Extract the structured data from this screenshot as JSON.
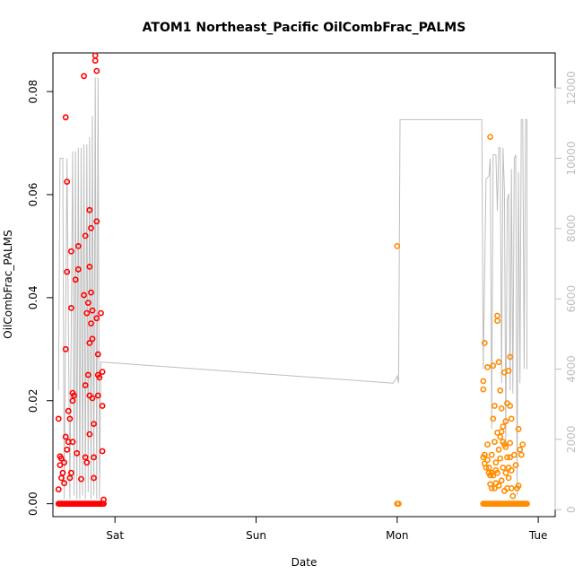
{
  "chart_data": {
    "type": "scatter",
    "title": "ATOM1 Northeast_Pacific OilCombFrac_PALMS",
    "xlabel": "Date",
    "ylabel": "OilCombFrac_PALMS",
    "xlim": [
      -0.44,
      3.12
    ],
    "ylim": [
      -0.0025,
      0.0875
    ],
    "y2lim": [
      -200,
      13000
    ],
    "x_ticks": [
      {
        "value": 0,
        "label": "Sat"
      },
      {
        "value": 1,
        "label": "Sun"
      },
      {
        "value": 2,
        "label": "Mon"
      },
      {
        "value": 3,
        "label": "Tue"
      }
    ],
    "y_ticks": [
      {
        "value": 0.0,
        "label": "0.00"
      },
      {
        "value": 0.02,
        "label": "0.02"
      },
      {
        "value": 0.04,
        "label": "0.04"
      },
      {
        "value": 0.06,
        "label": "0.06"
      },
      {
        "value": 0.08,
        "label": "0.08"
      }
    ],
    "y2_ticks": [
      {
        "value": 0,
        "label": "0"
      },
      {
        "value": 2000,
        "label": "2000"
      },
      {
        "value": 4000,
        "label": "4000"
      },
      {
        "value": 6000,
        "label": "6000"
      },
      {
        "value": 8000,
        "label": "8000"
      },
      {
        "value": 10000,
        "label": "10000"
      },
      {
        "value": 12000,
        "label": "12000"
      }
    ],
    "grid": false,
    "colors": {
      "series1": "#ff0000",
      "series2": "#ff8c00",
      "altitude": "#bebebe"
    },
    "series": [
      {
        "points": [
          [
            -0.4,
            0.0165
          ],
          [
            -0.4,
            0.0028
          ],
          [
            -0.39,
            0.0092
          ],
          [
            -0.39,
            0.0075
          ],
          [
            -0.38,
            0.0088
          ],
          [
            -0.38,
            0.005
          ],
          [
            -0.37,
            0.006
          ],
          [
            -0.36,
            0.004
          ],
          [
            -0.36,
            0.008
          ],
          [
            -0.35,
            0.013
          ],
          [
            -0.35,
            0.03
          ],
          [
            -0.35,
            0.075
          ],
          [
            -0.34,
            0.0625
          ],
          [
            -0.34,
            0.045
          ],
          [
            -0.34,
            0.0105
          ],
          [
            -0.33,
            0.012
          ],
          [
            -0.33,
            0.018
          ],
          [
            -0.32,
            0.0165
          ],
          [
            -0.32,
            0.005
          ],
          [
            -0.31,
            0.006
          ],
          [
            -0.31,
            0.038
          ],
          [
            -0.31,
            0.049
          ],
          [
            -0.3,
            0.0215
          ],
          [
            -0.3,
            0.02
          ],
          [
            -0.3,
            0.012
          ],
          [
            -0.29,
            0.021
          ],
          [
            -0.28,
            0.0435
          ],
          [
            -0.27,
            0.0098
          ],
          [
            -0.26,
            0.05
          ],
          [
            -0.26,
            0.0455
          ],
          [
            -0.24,
            0.0048
          ],
          [
            -0.22,
            0.0405
          ],
          [
            -0.22,
            0.083
          ],
          [
            -0.21,
            0.023
          ],
          [
            -0.21,
            0.009
          ],
          [
            -0.21,
            0.052
          ],
          [
            -0.2,
            0.037
          ],
          [
            -0.2,
            0.008
          ],
          [
            -0.19,
            0.025
          ],
          [
            -0.19,
            0.039
          ],
          [
            -0.18,
            0.057
          ],
          [
            -0.18,
            0.046
          ],
          [
            -0.18,
            0.021
          ],
          [
            -0.18,
            0.0312
          ],
          [
            -0.18,
            0.0135
          ],
          [
            -0.17,
            0.0535
          ],
          [
            -0.17,
            0.041
          ],
          [
            -0.17,
            0.035
          ],
          [
            -0.16,
            0.0375
          ],
          [
            -0.16,
            0.0205
          ],
          [
            -0.16,
            0.032
          ],
          [
            -0.15,
            0.0155
          ],
          [
            -0.15,
            0.005
          ],
          [
            -0.15,
            0.009
          ],
          [
            -0.14,
            0.086
          ],
          [
            -0.14,
            0.087
          ],
          [
            -0.13,
            0.084
          ],
          [
            -0.13,
            0.0548
          ],
          [
            -0.13,
            0.036
          ],
          [
            -0.12,
            0.029
          ],
          [
            -0.12,
            0.025
          ],
          [
            -0.12,
            0.021
          ],
          [
            -0.11,
            0.0245
          ],
          [
            -0.1,
            0.037
          ],
          [
            -0.09,
            0.019
          ],
          [
            -0.09,
            0.0102
          ],
          [
            -0.09,
            0.0256
          ],
          [
            -0.08,
            0.0008
          ],
          [
            -0.4,
            0
          ],
          [
            -0.39,
            0
          ],
          [
            -0.38,
            0
          ],
          [
            -0.37,
            0
          ],
          [
            -0.36,
            0
          ],
          [
            -0.35,
            0
          ],
          [
            -0.34,
            0
          ],
          [
            -0.33,
            0
          ],
          [
            -0.32,
            0
          ],
          [
            -0.31,
            0
          ],
          [
            -0.3,
            0
          ],
          [
            -0.29,
            0
          ],
          [
            -0.28,
            0
          ],
          [
            -0.27,
            0
          ],
          [
            -0.26,
            0
          ],
          [
            -0.25,
            0
          ],
          [
            -0.24,
            0
          ],
          [
            -0.23,
            0
          ],
          [
            -0.22,
            0
          ],
          [
            -0.21,
            0
          ],
          [
            -0.2,
            0
          ],
          [
            -0.19,
            0
          ],
          [
            -0.18,
            0
          ],
          [
            -0.17,
            0
          ],
          [
            -0.16,
            0
          ],
          [
            -0.15,
            0
          ],
          [
            -0.14,
            0
          ],
          [
            -0.13,
            0
          ],
          [
            -0.12,
            0
          ],
          [
            -0.11,
            0
          ],
          [
            -0.1,
            0
          ],
          [
            -0.09,
            0
          ],
          [
            -0.08,
            0
          ]
        ]
      },
      {
        "points": [
          [
            2.0,
            0.05
          ],
          [
            2.0,
            0
          ],
          [
            2.01,
            0
          ],
          [
            2.61,
            0.0238
          ],
          [
            2.61,
            0.0222
          ],
          [
            2.61,
            0.009
          ],
          [
            2.62,
            0.0312
          ],
          [
            2.62,
            0.0095
          ],
          [
            2.62,
            0.0078
          ],
          [
            2.63,
            0.007
          ],
          [
            2.64,
            0.0115
          ],
          [
            2.64,
            0.0265
          ],
          [
            2.64,
            0.0085
          ],
          [
            2.65,
            0.006
          ],
          [
            2.65,
            0.007
          ],
          [
            2.66,
            0.0055
          ],
          [
            2.66,
            0.0712
          ],
          [
            2.66,
            0.0038
          ],
          [
            2.67,
            0.006
          ],
          [
            2.67,
            0.0095
          ],
          [
            2.67,
            0.003
          ],
          [
            2.68,
            0.0268
          ],
          [
            2.68,
            0.0165
          ],
          [
            2.68,
            0.0055
          ],
          [
            2.69,
            0.019
          ],
          [
            2.69,
            0.012
          ],
          [
            2.69,
            0.003
          ],
          [
            2.7,
            0.0065
          ],
          [
            2.7,
            0.008
          ],
          [
            2.7,
            0.004
          ],
          [
            2.71,
            0.0138
          ],
          [
            2.71,
            0.0355
          ],
          [
            2.71,
            0.0365
          ],
          [
            2.71,
            0.006
          ],
          [
            2.72,
            0.0275
          ],
          [
            2.72,
            0.0105
          ],
          [
            2.72,
            0.0035
          ],
          [
            2.73,
            0.013
          ],
          [
            2.73,
            0.022
          ],
          [
            2.73,
            0.0088
          ],
          [
            2.74,
            0.014
          ],
          [
            2.74,
            0.0185
          ],
          [
            2.74,
            0.0045
          ],
          [
            2.75,
            0.007
          ],
          [
            2.75,
            0.012
          ],
          [
            2.75,
            0.015
          ],
          [
            2.76,
            0.0255
          ],
          [
            2.76,
            0.0115
          ],
          [
            2.76,
            0.0025
          ],
          [
            2.77,
            0.016
          ],
          [
            2.77,
            0.011
          ],
          [
            2.77,
            0.006
          ],
          [
            2.78,
            0.0195
          ],
          [
            2.78,
            0.009
          ],
          [
            2.78,
            0.003
          ],
          [
            2.79,
            0.0258
          ],
          [
            2.79,
            0.007
          ],
          [
            2.79,
            0.005
          ],
          [
            2.8,
            0.0285
          ],
          [
            2.8,
            0.019
          ],
          [
            2.8,
            0.0118
          ],
          [
            2.8,
            0.009
          ],
          [
            2.81,
            0.0165
          ],
          [
            2.81,
            0.0065
          ],
          [
            2.81,
            0.003
          ],
          [
            2.82,
            0.0015
          ],
          [
            2.83,
            0.0095
          ],
          [
            2.84,
            0.0075
          ],
          [
            2.85,
            0.003
          ],
          [
            2.86,
            0.0145
          ],
          [
            2.86,
            0.0035
          ],
          [
            2.87,
            0.0105
          ],
          [
            2.88,
            0.0095
          ],
          [
            2.89,
            0.0115
          ],
          [
            2.61,
            0
          ],
          [
            2.62,
            0
          ],
          [
            2.63,
            0
          ],
          [
            2.64,
            0
          ],
          [
            2.65,
            0
          ],
          [
            2.66,
            0
          ],
          [
            2.67,
            0
          ],
          [
            2.68,
            0
          ],
          [
            2.69,
            0
          ],
          [
            2.7,
            0
          ],
          [
            2.71,
            0
          ],
          [
            2.72,
            0
          ],
          [
            2.73,
            0
          ],
          [
            2.74,
            0
          ],
          [
            2.75,
            0
          ],
          [
            2.76,
            0
          ],
          [
            2.77,
            0
          ],
          [
            2.78,
            0
          ],
          [
            2.79,
            0
          ],
          [
            2.8,
            0
          ],
          [
            2.81,
            0
          ],
          [
            2.82,
            0
          ],
          [
            2.83,
            0
          ],
          [
            2.84,
            0
          ],
          [
            2.85,
            0
          ],
          [
            2.86,
            0
          ],
          [
            2.87,
            0
          ],
          [
            2.88,
            0
          ],
          [
            2.89,
            0
          ],
          [
            2.9,
            0
          ],
          [
            2.91,
            0
          ],
          [
            2.92,
            0
          ]
        ]
      }
    ],
    "altitude_line": [
      [
        -0.4,
        3400
      ],
      [
        -0.39,
        10000
      ],
      [
        -0.37,
        10000
      ],
      [
        -0.36,
        300
      ],
      [
        -0.34,
        10000
      ],
      [
        -0.32,
        300
      ],
      [
        -0.3,
        10200
      ],
      [
        -0.29,
        400
      ],
      [
        -0.28,
        10200
      ],
      [
        -0.27,
        300
      ],
      [
        -0.26,
        10300
      ],
      [
        -0.25,
        300
      ],
      [
        -0.24,
        10300
      ],
      [
        -0.23,
        400
      ],
      [
        -0.22,
        10400
      ],
      [
        -0.21,
        300
      ],
      [
        -0.2,
        10400
      ],
      [
        -0.19,
        500
      ],
      [
        -0.18,
        10600
      ],
      [
        -0.17,
        300
      ],
      [
        -0.16,
        11200
      ],
      [
        -0.15,
        400
      ],
      [
        -0.14,
        12300
      ],
      [
        -0.13,
        300
      ],
      [
        -0.12,
        12300
      ],
      [
        -0.11,
        300
      ],
      [
        -0.1,
        4200
      ],
      [
        -0.09,
        4200
      ],
      [
        1.97,
        3600
      ],
      [
        1.99,
        3700
      ],
      [
        2.0,
        3800
      ],
      [
        2.01,
        3600
      ],
      [
        2.02,
        11100
      ],
      [
        2.05,
        11100
      ],
      [
        2.5,
        11100
      ],
      [
        2.6,
        11100
      ],
      [
        2.61,
        4000
      ],
      [
        2.63,
        9400
      ],
      [
        2.65,
        9500
      ],
      [
        2.66,
        10000
      ],
      [
        2.67,
        2300
      ],
      [
        2.68,
        10100
      ],
      [
        2.7,
        10100
      ],
      [
        2.71,
        8500
      ],
      [
        2.72,
        10300
      ],
      [
        2.73,
        10300
      ],
      [
        2.74,
        3600
      ],
      [
        2.75,
        10300
      ],
      [
        2.76,
        9100
      ],
      [
        2.77,
        1900
      ],
      [
        2.78,
        8800
      ],
      [
        2.79,
        9000
      ],
      [
        2.8,
        3400
      ],
      [
        2.81,
        9700
      ],
      [
        2.82,
        3300
      ],
      [
        2.83,
        10000
      ],
      [
        2.84,
        10100
      ],
      [
        2.85,
        400
      ],
      [
        2.86,
        9600
      ],
      [
        2.87,
        3600
      ],
      [
        2.88,
        11100
      ],
      [
        2.89,
        11100
      ],
      [
        2.9,
        4000
      ],
      [
        2.91,
        11100
      ],
      [
        2.92,
        11100
      ],
      [
        2.92,
        4000
      ]
    ]
  }
}
